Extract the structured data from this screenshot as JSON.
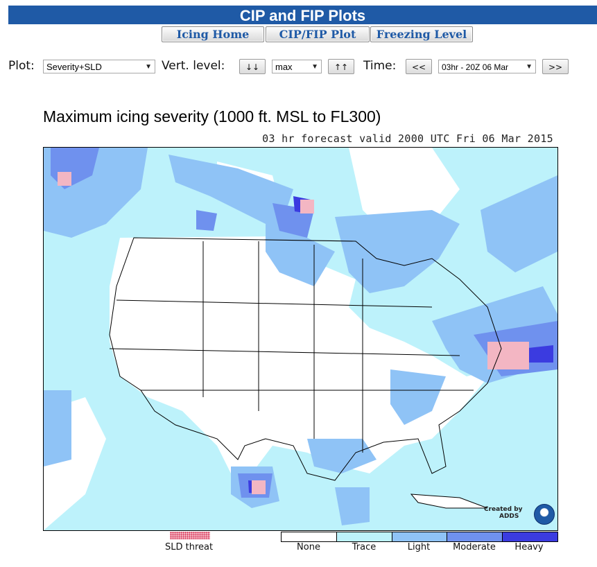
{
  "header": {
    "title": "CIP and FIP Plots"
  },
  "nav": {
    "icing_home": "Icing Home",
    "cip_fip_plot": "CIP/FIP Plot",
    "freezing_level": "Freezing Level"
  },
  "controls": {
    "plot_label": "Plot:",
    "plot_value": "Severity+SLD",
    "vert_label": "Vert. level:",
    "vert_down": "↓↓",
    "vert_value": "max",
    "vert_up": "↑↑",
    "time_label": "Time:",
    "time_prev": "<<",
    "time_value": "03hr - 20Z 06 Mar",
    "time_next": ">>"
  },
  "map": {
    "title": "Maximum icing severity (1000 ft. MSL to FL300)",
    "subtitle": "03 hr forecast valid 2000 UTC Fri 06 Mar 2015",
    "credit_line1": "Created by",
    "credit_line2": "ADDS"
  },
  "legend": {
    "sld_label": "SLD threat",
    "items": [
      {
        "label": "None",
        "color": "#ffffff"
      },
      {
        "label": "Trace",
        "color": "#bdf2fb"
      },
      {
        "label": "Light",
        "color": "#8fc3f6"
      },
      {
        "label": "Moderate",
        "color": "#6f91ee"
      },
      {
        "label": "Heavy",
        "color": "#3b3be0"
      }
    ]
  },
  "colors": {
    "header_bg": "#1f5aa6",
    "sld": "#d62a4e"
  }
}
